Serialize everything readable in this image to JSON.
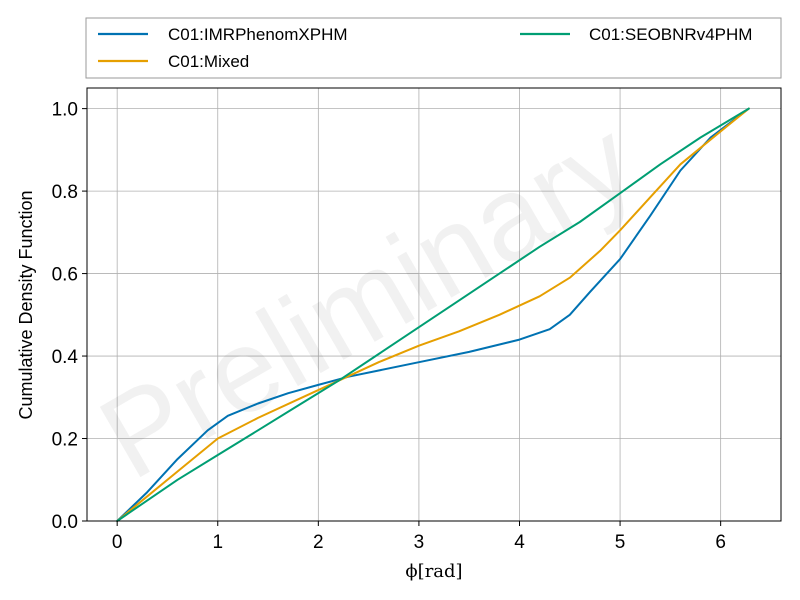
{
  "chart_data": {
    "type": "line",
    "xlabel": "ϕ[rad]",
    "ylabel": "Cumulative Density Function",
    "watermark": "Preliminary",
    "xlim": [
      -0.3,
      6.6
    ],
    "ylim": [
      0.0,
      1.05
    ],
    "xticks": [
      0,
      1,
      2,
      3,
      4,
      5,
      6
    ],
    "yticks": [
      0.0,
      0.2,
      0.4,
      0.6,
      0.8,
      1.0
    ],
    "xtick_labels": [
      "0",
      "1",
      "2",
      "3",
      "4",
      "5",
      "6"
    ],
    "ytick_labels": [
      "0.0",
      "0.2",
      "0.4",
      "0.6",
      "0.8",
      "1.0"
    ],
    "grid": true,
    "legend_position": "top, above plot, two columns",
    "series": [
      {
        "name": "C01:IMRPhenomXPHM",
        "color": "#0072B2",
        "x": [
          0,
          0.3,
          0.6,
          0.9,
          1.1,
          1.4,
          1.7,
          2.0,
          2.3,
          2.6,
          3.0,
          3.5,
          4.0,
          4.3,
          4.5,
          4.7,
          5.0,
          5.3,
          5.6,
          5.9,
          6.28
        ],
        "y": [
          0,
          0.07,
          0.15,
          0.22,
          0.255,
          0.285,
          0.31,
          0.33,
          0.35,
          0.365,
          0.385,
          0.41,
          0.44,
          0.465,
          0.5,
          0.555,
          0.635,
          0.74,
          0.85,
          0.93,
          1.0
        ]
      },
      {
        "name": "C01:Mixed",
        "color": "#E69F00",
        "x": [
          0,
          0.3,
          0.6,
          1.0,
          1.4,
          1.8,
          2.2,
          2.6,
          3.0,
          3.4,
          3.8,
          4.2,
          4.5,
          4.8,
          5.0,
          5.3,
          5.6,
          6.0,
          6.28
        ],
        "y": [
          0,
          0.06,
          0.12,
          0.2,
          0.25,
          0.295,
          0.34,
          0.385,
          0.425,
          0.46,
          0.5,
          0.545,
          0.59,
          0.655,
          0.705,
          0.785,
          0.865,
          0.945,
          1.0
        ]
      },
      {
        "name": "C01:SEOBNRv4PHM",
        "color": "#009E73",
        "x": [
          0,
          0.3,
          0.6,
          1.0,
          1.4,
          1.8,
          2.2,
          2.6,
          3.0,
          3.4,
          3.8,
          4.2,
          4.6,
          5.0,
          5.4,
          5.8,
          6.28
        ],
        "y": [
          0,
          0.05,
          0.1,
          0.16,
          0.22,
          0.28,
          0.34,
          0.405,
          0.47,
          0.535,
          0.6,
          0.665,
          0.725,
          0.795,
          0.865,
          0.93,
          1.0
        ]
      }
    ]
  }
}
